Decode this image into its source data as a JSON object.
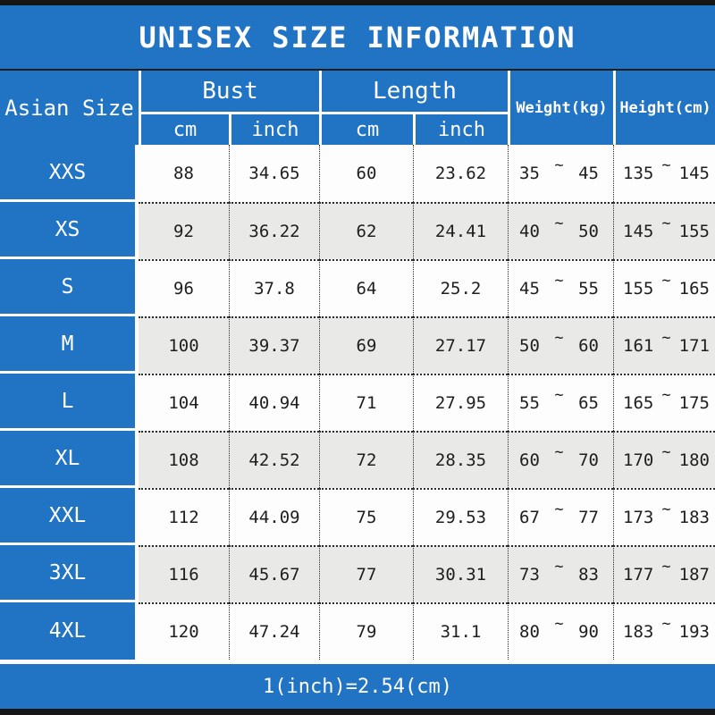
{
  "title": "UNISEX SIZE INFORMATION",
  "header": {
    "size_column": "Asian Size",
    "bust_group": "Bust",
    "length_group": "Length",
    "unit_cm": "cm",
    "unit_inch": "inch",
    "weight": "Weight(kg)",
    "height": "Height(cm)"
  },
  "ui": {
    "tilde": "~"
  },
  "footer_note": "1(inch)=2.54(cm)",
  "colors": {
    "brand_blue": "#2173c4",
    "row_alt_gray": "#e9e9e8",
    "row_white": "#fdfdfd",
    "frame_black": "#161616",
    "text_dark": "#1e1e1e",
    "header_text": "#ffffff"
  },
  "chart_data": {
    "type": "table",
    "title": "UNISEX SIZE INFORMATION",
    "column_groups": [
      "Asian Size",
      "Bust",
      "Length",
      "Weight(kg)",
      "Height(cm)"
    ],
    "columns": [
      "Asian Size",
      "Bust cm",
      "Bust inch",
      "Length cm",
      "Length inch",
      "Weight min (kg)",
      "Weight max (kg)",
      "Height min (cm)",
      "Height max (cm)"
    ],
    "rows": [
      [
        "XXS",
        "88",
        "34.65",
        "60",
        "23.62",
        "35",
        "45",
        "135",
        "145"
      ],
      [
        "XS",
        "92",
        "36.22",
        "62",
        "24.41",
        "40",
        "50",
        "145",
        "155"
      ],
      [
        "S",
        "96",
        "37.8",
        "64",
        "25.2",
        "45",
        "55",
        "155",
        "165"
      ],
      [
        "M",
        "100",
        "39.37",
        "69",
        "27.17",
        "50",
        "60",
        "161",
        "171"
      ],
      [
        "L",
        "104",
        "40.94",
        "71",
        "27.95",
        "55",
        "65",
        "165",
        "175"
      ],
      [
        "XL",
        "108",
        "42.52",
        "72",
        "28.35",
        "60",
        "70",
        "170",
        "180"
      ],
      [
        "XXL",
        "112",
        "44.09",
        "75",
        "29.53",
        "67",
        "77",
        "173",
        "183"
      ],
      [
        "3XL",
        "116",
        "45.67",
        "77",
        "30.31",
        "73",
        "83",
        "177",
        "187"
      ],
      [
        "4XL",
        "120",
        "47.24",
        "79",
        "31.1",
        "80",
        "90",
        "183",
        "193"
      ]
    ],
    "note": "1(inch)=2.54(cm)"
  }
}
